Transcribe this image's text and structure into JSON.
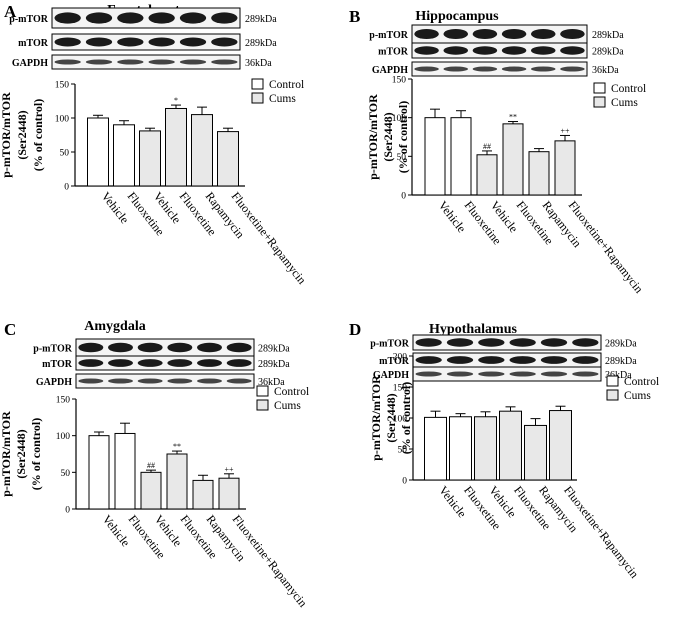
{
  "figure": {
    "panels": [
      {
        "letter": "A",
        "title": "Frontal cortex"
      },
      {
        "letter": "B",
        "title": "Hippocampus"
      },
      {
        "letter": "C",
        "title": "Amygdala"
      },
      {
        "letter": "D",
        "title": "Hypothalamus"
      }
    ],
    "blot_labels": [
      "p-mTOR",
      "mTOR",
      "GAPDH"
    ],
    "blot_sizes": [
      "289kDa",
      "289kDa",
      "36kDa"
    ],
    "ylabel_lines": [
      "p-mTOR/mTOR",
      "(Ser2448)",
      "(% of control)"
    ],
    "legend": [
      "Control",
      "Cums"
    ],
    "colors": {
      "control": "#ffffff",
      "cums": "#e8e8e8",
      "line": "#000000",
      "band": "#1a1a1a",
      "gapdh_band": "#444444"
    }
  },
  "chart_data": [
    {
      "type": "bar",
      "panel": "A",
      "title": "Frontal cortex",
      "categories": [
        "Vehicle",
        "Fluoxetine",
        "Vehicle",
        "Fluoxetine",
        "Rapamycin",
        "Fluoxetine+Rapamycin"
      ],
      "groups": [
        "Control",
        "Control",
        "Cums",
        "Cums",
        "Cums",
        "Cums"
      ],
      "values": [
        100,
        90,
        81,
        114,
        105,
        80
      ],
      "errors": [
        4,
        6,
        4,
        5,
        11,
        5
      ],
      "annotations": [
        "",
        "",
        "",
        "*",
        "",
        ""
      ],
      "ylabel": "p-mTOR/mTOR (Ser2448) (% of control)",
      "ylim": [
        0,
        150
      ],
      "yticks": [
        0,
        50,
        100,
        150
      ],
      "legend": [
        "Control",
        "Cums"
      ],
      "legend_position": "right"
    },
    {
      "type": "bar",
      "panel": "B",
      "title": "Hippocampus",
      "categories": [
        "Vehicle",
        "Fluoxetine",
        "Vehicle",
        "Fluoxetine",
        "Rapamycin",
        "Fluoxetine+Rapamycin"
      ],
      "groups": [
        "Control",
        "Control",
        "Cums",
        "Cums",
        "Cums",
        "Cums"
      ],
      "values": [
        100,
        100,
        52,
        92,
        56,
        70
      ],
      "errors": [
        11,
        9,
        5,
        3,
        4,
        7
      ],
      "annotations": [
        "",
        "",
        "##",
        "**",
        "",
        "++"
      ],
      "ylabel": "p-mTOR/mTOR (Ser2448) (% of control)",
      "ylim": [
        0,
        150
      ],
      "yticks": [
        0,
        50,
        100,
        150
      ],
      "legend": [
        "Control",
        "Cums"
      ],
      "legend_position": "right"
    },
    {
      "type": "bar",
      "panel": "C",
      "title": "Amygdala",
      "categories": [
        "Vehicle",
        "Fluoxetine",
        "Vehicle",
        "Fluoxetine",
        "Rapamycin",
        "Fluoxetine+Rapamycin"
      ],
      "groups": [
        "Control",
        "Control",
        "Cums",
        "Cums",
        "Cums",
        "Cums"
      ],
      "values": [
        100,
        103,
        50,
        75,
        39,
        42
      ],
      "errors": [
        5,
        14,
        3,
        4,
        7,
        6
      ],
      "annotations": [
        "",
        "",
        "##",
        "**",
        "",
        "++"
      ],
      "ylabel": "p-mTOR/mTOR (Ser2448) (% of control)",
      "ylim": [
        0,
        150
      ],
      "yticks": [
        0,
        50,
        100,
        150
      ],
      "legend": [
        "Control",
        "Cums"
      ],
      "legend_position": "right"
    },
    {
      "type": "bar",
      "panel": "D",
      "title": "Hypothalamus",
      "categories": [
        "Vehicle",
        "Fluoxetine",
        "Vehicle",
        "Fluoxetine",
        "Rapamycin",
        "Fluoxetine+Rapamycin"
      ],
      "groups": [
        "Control",
        "Control",
        "Cums",
        "Cums",
        "Cums",
        "Cums"
      ],
      "values": [
        101,
        102,
        102,
        111,
        88,
        112
      ],
      "errors": [
        10,
        5,
        8,
        7,
        11,
        7
      ],
      "annotations": [
        "",
        "",
        "",
        "",
        "",
        ""
      ],
      "ylabel": "p-mTOR/mTOR (Ser2448) (% of control)",
      "ylim": [
        0,
        200
      ],
      "yticks": [
        0,
        50,
        100,
        150,
        200
      ],
      "legend": [
        "Control",
        "Cums"
      ],
      "legend_position": "right"
    }
  ]
}
